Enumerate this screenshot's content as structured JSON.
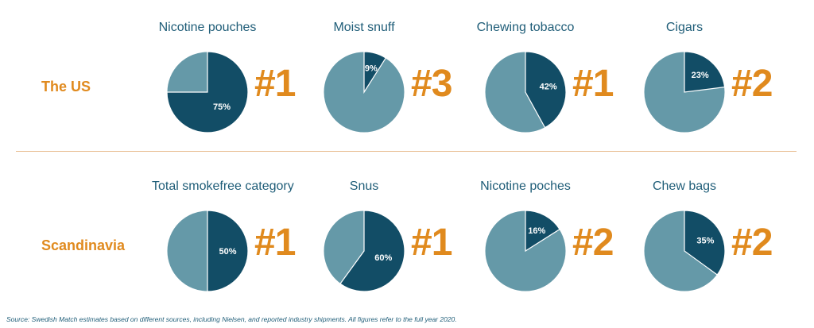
{
  "colors": {
    "dark": "#124d66",
    "light": "#6599a8",
    "accent": "#e08a1e",
    "text": "#1f5d78"
  },
  "rows": [
    {
      "region": "The US"
    },
    {
      "region": "Scandinavia"
    }
  ],
  "chart_data": [
    {
      "type": "pie",
      "title": "Nicotine pouches",
      "share": 75,
      "label": "75%",
      "rank": "#1"
    },
    {
      "type": "pie",
      "title": "Moist snuff",
      "share": 9,
      "label": "9%",
      "rank": "#3"
    },
    {
      "type": "pie",
      "title": "Chewing tobacco",
      "share": 42,
      "label": "42%",
      "rank": "#1"
    },
    {
      "type": "pie",
      "title": "Cigars",
      "share": 23,
      "label": "23%",
      "rank": "#2"
    },
    {
      "type": "pie",
      "title": "Total smokefree category",
      "share": 50,
      "label": "50%",
      "rank": "#1"
    },
    {
      "type": "pie",
      "title": "Snus",
      "share": 60,
      "label": "60%",
      "rank": "#1"
    },
    {
      "type": "pie",
      "title": "Nicotine poches",
      "share": 16,
      "label": "16%",
      "rank": "#2"
    },
    {
      "type": "pie",
      "title": "Chew bags",
      "share": 35,
      "label": "35%",
      "rank": "#2"
    }
  ],
  "source": "Source: Swedish Match estimates based on different sources, including Nielsen, and reported industry shipments. All figures refer to the full year 2020."
}
